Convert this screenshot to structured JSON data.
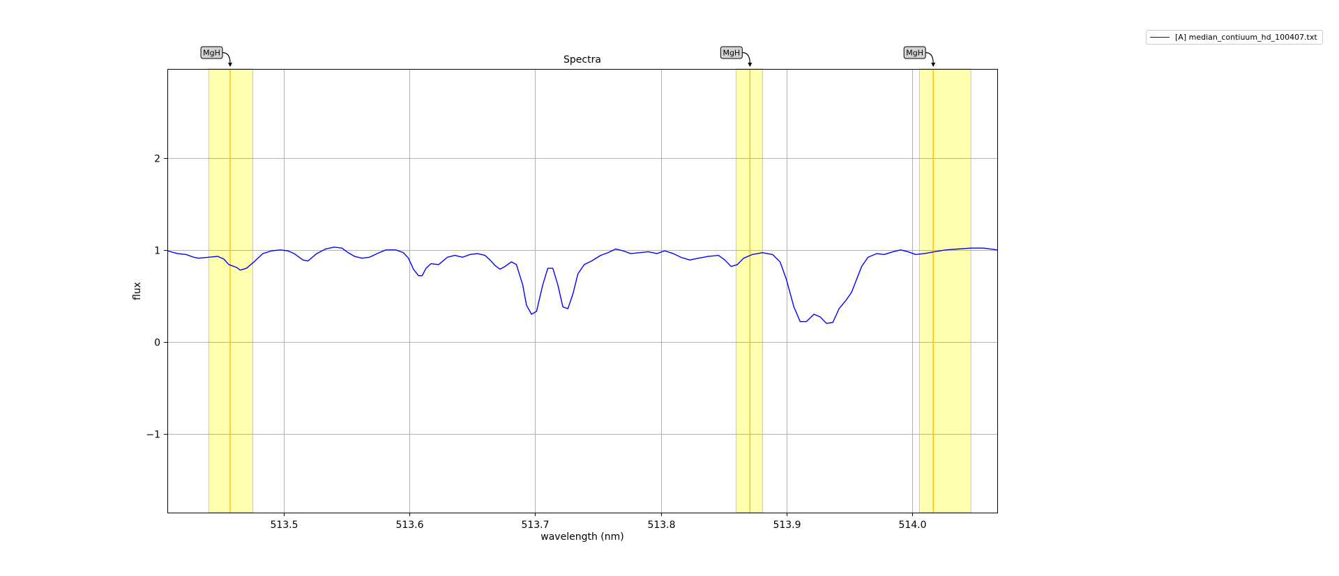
{
  "chart_data": {
    "type": "line",
    "title": "Spectra",
    "xlabel": "wavelength (nm)",
    "ylabel": "flux",
    "xlim": [
      513.407,
      514.068
    ],
    "ylim": [
      -1.86,
      2.97
    ],
    "grid": true,
    "x_ticks": [
      513.5,
      513.6,
      513.7,
      513.8,
      513.9,
      514.0
    ],
    "x_tick_labels": [
      "513.5",
      "513.6",
      "513.7",
      "513.8",
      "513.9",
      "514.0"
    ],
    "y_ticks": [
      -1,
      0,
      1,
      2
    ],
    "y_tick_labels": [
      "−1",
      "0",
      "1",
      "2"
    ],
    "legend_position": "outside-top-right",
    "series": [
      {
        "name": "[A] median_contiuum_hd_100407.txt",
        "color": "#0000ff",
        "points": [
          [
            513.407,
            0.99
          ],
          [
            513.415,
            0.96
          ],
          [
            513.422,
            0.95
          ],
          [
            513.428,
            0.92
          ],
          [
            513.432,
            0.91
          ],
          [
            513.44,
            0.92
          ],
          [
            513.447,
            0.93
          ],
          [
            513.452,
            0.9
          ],
          [
            513.456,
            0.84
          ],
          [
            513.462,
            0.81
          ],
          [
            513.465,
            0.78
          ],
          [
            513.47,
            0.8
          ],
          [
            513.476,
            0.87
          ],
          [
            513.483,
            0.96
          ],
          [
            513.49,
            0.99
          ],
          [
            513.497,
            1.0
          ],
          [
            513.503,
            0.99
          ],
          [
            513.508,
            0.96
          ],
          [
            513.515,
            0.89
          ],
          [
            513.519,
            0.88
          ],
          [
            513.526,
            0.96
          ],
          [
            513.533,
            1.01
          ],
          [
            513.54,
            1.03
          ],
          [
            513.546,
            1.02
          ],
          [
            513.551,
            0.97
          ],
          [
            513.556,
            0.93
          ],
          [
            513.562,
            0.91
          ],
          [
            513.568,
            0.92
          ],
          [
            513.574,
            0.96
          ],
          [
            513.581,
            1.0
          ],
          [
            513.589,
            1.0
          ],
          [
            513.595,
            0.97
          ],
          [
            513.599,
            0.91
          ],
          [
            513.603,
            0.79
          ],
          [
            513.607,
            0.72
          ],
          [
            513.61,
            0.72
          ],
          [
            513.613,
            0.8
          ],
          [
            513.617,
            0.85
          ],
          [
            513.623,
            0.84
          ],
          [
            513.63,
            0.92
          ],
          [
            513.636,
            0.94
          ],
          [
            513.642,
            0.92
          ],
          [
            513.648,
            0.95
          ],
          [
            513.654,
            0.96
          ],
          [
            513.66,
            0.94
          ],
          [
            513.664,
            0.89
          ],
          [
            513.668,
            0.83
          ],
          [
            513.672,
            0.79
          ],
          [
            513.676,
            0.82
          ],
          [
            513.681,
            0.87
          ],
          [
            513.685,
            0.84
          ],
          [
            513.69,
            0.62
          ],
          [
            513.693,
            0.4
          ],
          [
            513.697,
            0.3
          ],
          [
            513.701,
            0.33
          ],
          [
            513.706,
            0.62
          ],
          [
            513.71,
            0.8
          ],
          [
            513.714,
            0.8
          ],
          [
            513.718,
            0.62
          ],
          [
            513.722,
            0.38
          ],
          [
            513.726,
            0.36
          ],
          [
            513.73,
            0.52
          ],
          [
            513.734,
            0.74
          ],
          [
            513.739,
            0.84
          ],
          [
            513.745,
            0.88
          ],
          [
            513.752,
            0.94
          ],
          [
            513.758,
            0.97
          ],
          [
            513.764,
            1.01
          ],
          [
            513.77,
            0.99
          ],
          [
            513.776,
            0.96
          ],
          [
            513.783,
            0.97
          ],
          [
            513.79,
            0.98
          ],
          [
            513.797,
            0.96
          ],
          [
            513.803,
            0.99
          ],
          [
            513.81,
            0.96
          ],
          [
            513.816,
            0.92
          ],
          [
            513.823,
            0.89
          ],
          [
            513.83,
            0.91
          ],
          [
            513.838,
            0.93
          ],
          [
            513.846,
            0.94
          ],
          [
            513.851,
            0.89
          ],
          [
            513.856,
            0.82
          ],
          [
            513.861,
            0.84
          ],
          [
            513.866,
            0.91
          ],
          [
            513.873,
            0.95
          ],
          [
            513.881,
            0.97
          ],
          [
            513.889,
            0.95
          ],
          [
            513.895,
            0.87
          ],
          [
            513.9,
            0.68
          ],
          [
            513.906,
            0.38
          ],
          [
            513.911,
            0.22
          ],
          [
            513.916,
            0.22
          ],
          [
            513.922,
            0.3
          ],
          [
            513.927,
            0.27
          ],
          [
            513.932,
            0.2
          ],
          [
            513.937,
            0.21
          ],
          [
            513.942,
            0.36
          ],
          [
            513.948,
            0.46
          ],
          [
            513.952,
            0.54
          ],
          [
            513.956,
            0.68
          ],
          [
            513.96,
            0.82
          ],
          [
            513.965,
            0.92
          ],
          [
            513.972,
            0.96
          ],
          [
            513.978,
            0.95
          ],
          [
            513.985,
            0.98
          ],
          [
            513.991,
            1.0
          ],
          [
            513.997,
            0.98
          ],
          [
            514.003,
            0.95
          ],
          [
            514.01,
            0.96
          ],
          [
            514.018,
            0.98
          ],
          [
            514.027,
            1.0
          ],
          [
            514.037,
            1.01
          ],
          [
            514.047,
            1.02
          ],
          [
            514.057,
            1.02
          ],
          [
            514.068,
            1.0
          ]
        ]
      }
    ],
    "highlight_regions": [
      {
        "x0": 513.44,
        "x1": 513.475,
        "color": "#ffffb0"
      },
      {
        "x0": 513.86,
        "x1": 513.881,
        "color": "#ffffb0"
      },
      {
        "x0": 514.006,
        "x1": 514.047,
        "color": "#ffffb0"
      }
    ],
    "annotations": [
      {
        "text": "MgH",
        "x": 513.457,
        "line_color": "#ffbf00"
      },
      {
        "text": "MgH",
        "x": 513.871,
        "line_color": "#ffbf00"
      },
      {
        "text": "MgH",
        "x": 514.017,
        "line_color": "#ffbf00"
      }
    ]
  }
}
